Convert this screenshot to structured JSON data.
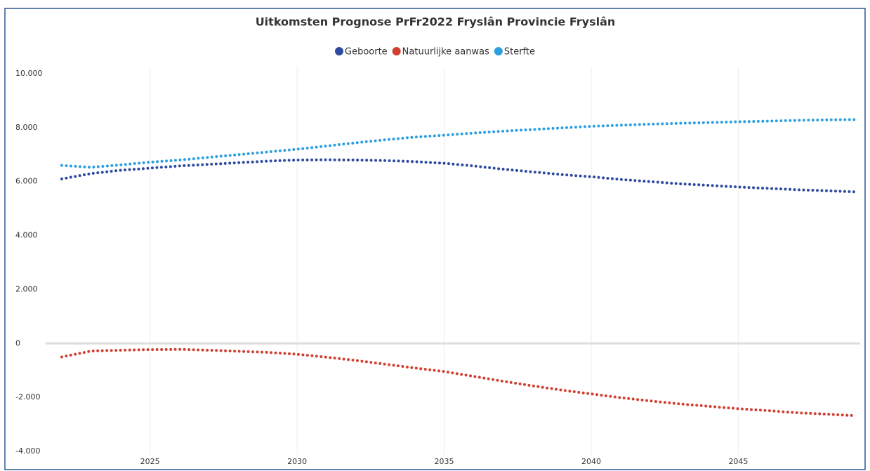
{
  "chart_data": {
    "type": "line",
    "title": "Uitkomsten Prognose PrFr2022 Fryslân Provincie Fryslân",
    "x": [
      2022,
      2023,
      2024,
      2025,
      2026,
      2027,
      2028,
      2029,
      2030,
      2031,
      2032,
      2033,
      2034,
      2035,
      2036,
      2037,
      2038,
      2039,
      2040,
      2041,
      2042,
      2043,
      2044,
      2045,
      2046,
      2047,
      2048,
      2049
    ],
    "series": [
      {
        "name": "Geboorte",
        "color": "#2e4a9e",
        "values": [
          6100,
          6300,
          6420,
          6500,
          6580,
          6640,
          6700,
          6760,
          6800,
          6810,
          6800,
          6780,
          6740,
          6680,
          6580,
          6460,
          6360,
          6260,
          6180,
          6080,
          6000,
          5920,
          5860,
          5800,
          5750,
          5700,
          5660,
          5620
        ]
      },
      {
        "name": "Natuurlijke aanwas",
        "color": "#d13f31",
        "values": [
          -500,
          -280,
          -250,
          -230,
          -220,
          -250,
          -290,
          -330,
          -400,
          -510,
          -630,
          -770,
          -910,
          -1040,
          -1220,
          -1400,
          -1570,
          -1730,
          -1870,
          -2010,
          -2130,
          -2240,
          -2330,
          -2420,
          -2490,
          -2570,
          -2620,
          -2680
        ]
      },
      {
        "name": "Sterfte",
        "color": "#2c9fe0",
        "values": [
          6600,
          6530,
          6620,
          6720,
          6800,
          6900,
          7000,
          7100,
          7200,
          7320,
          7440,
          7550,
          7650,
          7720,
          7800,
          7870,
          7930,
          7990,
          8050,
          8090,
          8130,
          8160,
          8190,
          8220,
          8240,
          8270,
          8290,
          8300
        ]
      }
    ],
    "xlim": [
      2022,
      2049
    ],
    "xticks": [
      2025,
      2030,
      2035,
      2040,
      2045
    ],
    "ylim": [
      -4000,
      10000
    ],
    "yticks": [
      {
        "value": -4000,
        "label": "-4.000"
      },
      {
        "value": -2000,
        "label": "-2.000"
      },
      0,
      {
        "value": 2000,
        "label": "2.000"
      },
      {
        "value": 4000,
        "label": "4.000"
      },
      {
        "value": 6000,
        "label": "6.000"
      },
      {
        "value": 8000,
        "label": "8.000"
      },
      {
        "value": 10000,
        "label": "10.000"
      }
    ],
    "grid": true,
    "legend": "top"
  }
}
